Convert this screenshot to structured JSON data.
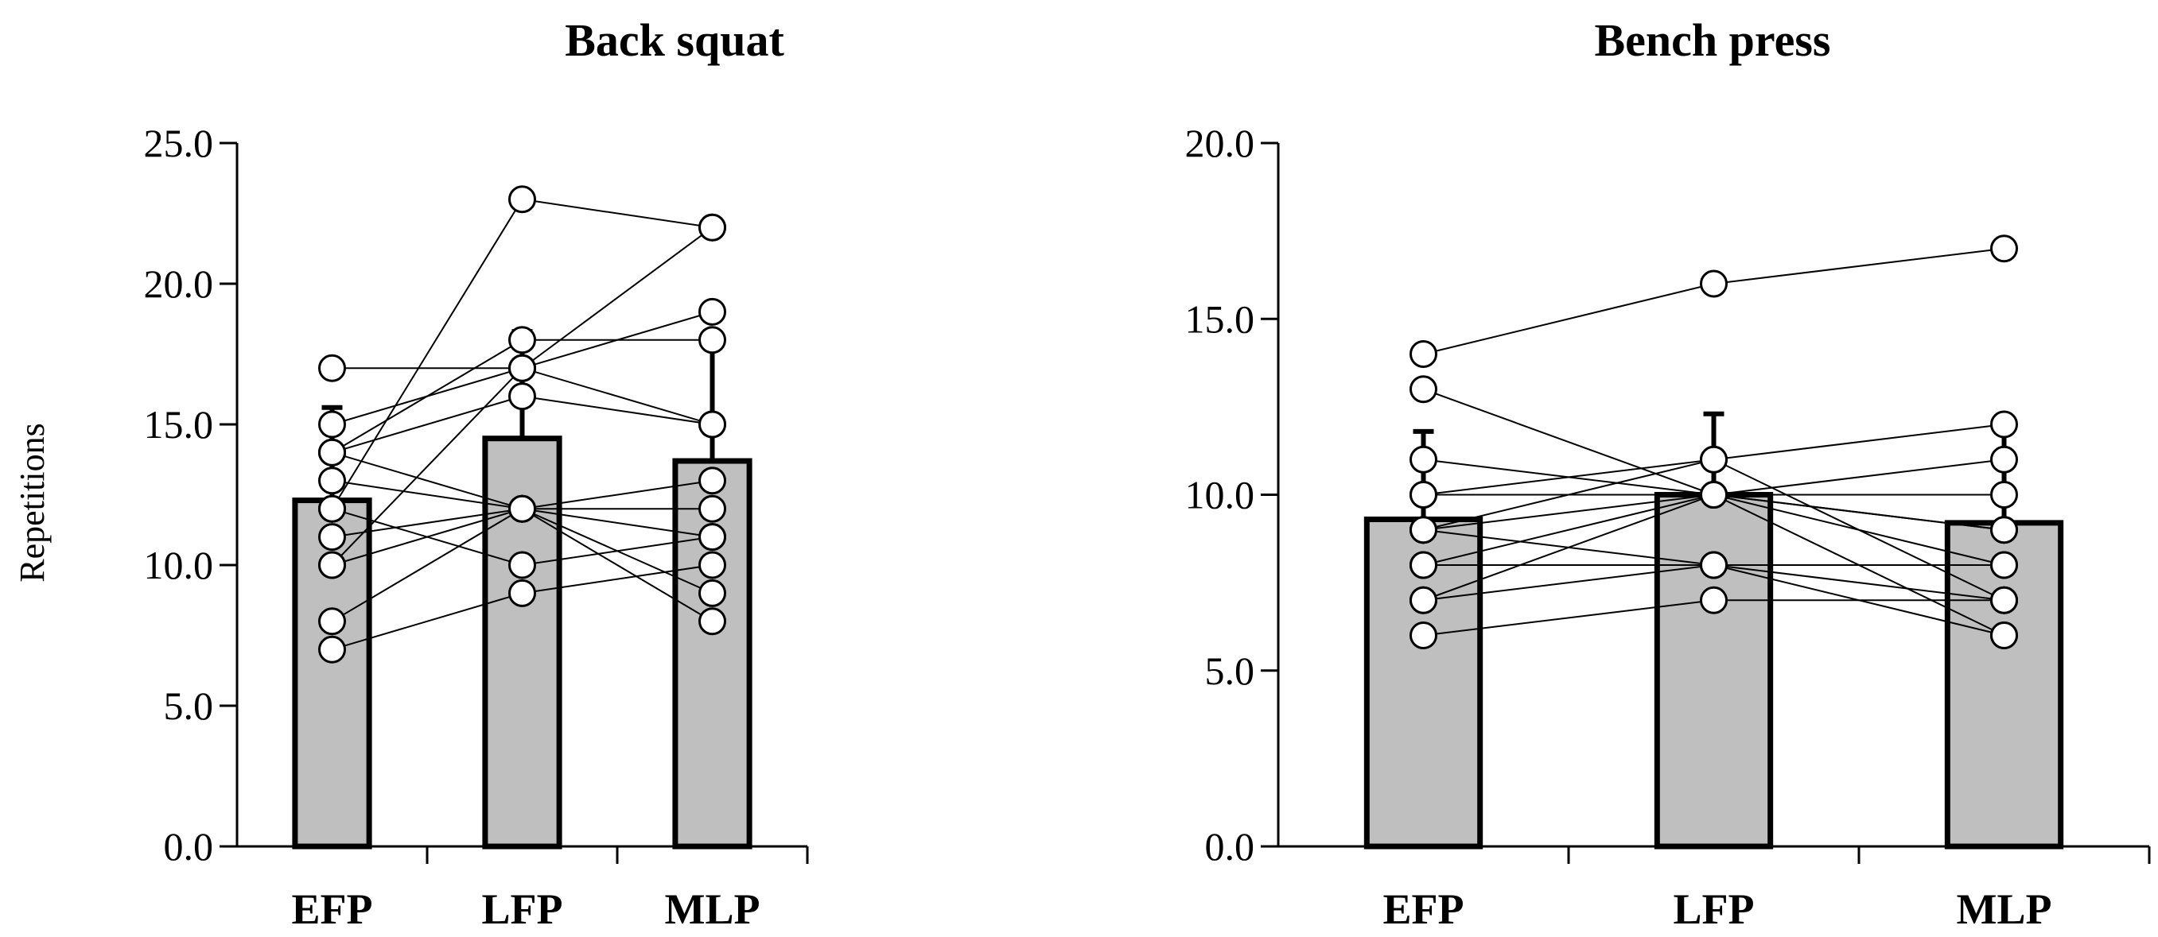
{
  "chart_data": [
    {
      "type": "bar",
      "title": "Back squat",
      "ylabel": "Repetitions",
      "xlabel": "",
      "ylim": [
        0,
        25
      ],
      "yticks": [
        "0.0",
        "5.0",
        "10.0",
        "15.0",
        "20.0",
        "25.0"
      ],
      "ytick_values": [
        0,
        5,
        10,
        15,
        20,
        25
      ],
      "categories": [
        "EFP",
        "LFP",
        "MLP"
      ],
      "values": [
        12.3,
        14.5,
        13.7
      ],
      "errors": [
        3.3,
        3.8,
        4.3
      ],
      "subjects": [
        [
          17,
          17,
          15
        ],
        [
          15,
          17,
          19
        ],
        [
          14,
          18,
          18
        ],
        [
          14,
          16,
          15
        ],
        [
          13,
          12,
          11
        ],
        [
          12,
          10,
          11
        ],
        [
          11,
          12,
          13
        ],
        [
          10,
          17,
          22
        ],
        [
          10,
          12,
          12
        ],
        [
          8,
          12,
          9
        ],
        [
          7,
          9,
          10
        ],
        [
          12,
          23,
          22
        ],
        [
          14,
          12,
          8
        ]
      ]
    },
    {
      "type": "bar",
      "title": "Bench press",
      "ylabel": "",
      "xlabel": "",
      "ylim": [
        0,
        20
      ],
      "yticks": [
        "0.0",
        "5.0",
        "10.0",
        "15.0",
        "20.0"
      ],
      "ytick_values": [
        0,
        5,
        10,
        15,
        20
      ],
      "categories": [
        "EFP",
        "LFP",
        "MLP"
      ],
      "values": [
        9.3,
        10.0,
        9.2
      ],
      "errors": [
        2.5,
        2.3,
        2.6
      ],
      "subjects": [
        [
          14,
          16,
          17
        ],
        [
          13,
          10,
          6
        ],
        [
          11,
          10,
          9
        ],
        [
          10,
          11,
          12
        ],
        [
          10,
          10,
          10
        ],
        [
          9,
          10,
          11
        ],
        [
          9,
          8,
          7
        ],
        [
          8,
          8,
          8
        ],
        [
          8,
          10,
          8
        ],
        [
          7,
          10,
          9
        ],
        [
          7,
          8,
          6
        ],
        [
          6,
          7,
          7
        ],
        [
          9,
          11,
          7
        ]
      ]
    }
  ]
}
